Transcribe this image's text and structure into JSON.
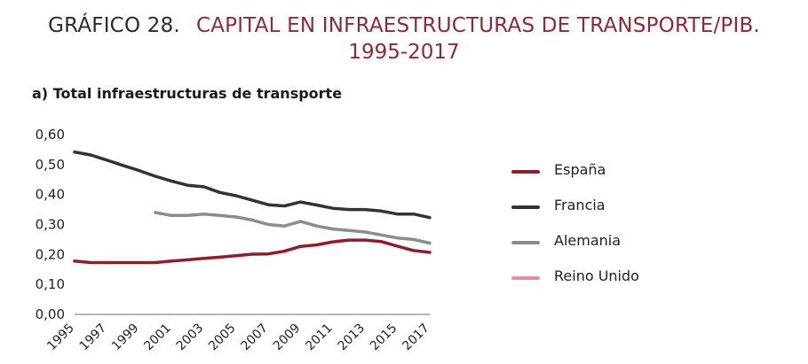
{
  "header": {
    "prefix": "GRÁFICO 28.",
    "title": "CAPITAL EN INFRAESTRUCTURAS DE TRANSPORTE/PIB.",
    "years": "1995-2017"
  },
  "colors": {
    "title_accent": "#8a2b3a",
    "espana": "#8a1f2e",
    "francia": "#333333",
    "alemania": "#8c8c8c",
    "reino_unido": "#e0909a"
  },
  "chart_data": {
    "type": "line",
    "subtitle": "a)  Total infraestructuras de transporte",
    "x": [
      1995,
      1996,
      1997,
      1998,
      1999,
      2000,
      2001,
      2002,
      2003,
      2004,
      2005,
      2006,
      2007,
      2008,
      2009,
      2010,
      2011,
      2012,
      2013,
      2014,
      2015,
      2016,
      2017
    ],
    "xtick_labels": [
      "1995",
      "1997",
      "1999",
      "2001",
      "2003",
      "2005",
      "2007",
      "2009",
      "2011",
      "2013",
      "2015",
      "2017"
    ],
    "ytick_labels": [
      "0,00",
      "0,10",
      "0,20",
      "0,30",
      "0,40",
      "0,50",
      "0,60"
    ],
    "ylim": [
      0,
      0.6
    ],
    "grid": false,
    "legend_position": "right",
    "series": [
      {
        "name": "España",
        "color": "#8a1f2e",
        "values": [
          0.178,
          0.173,
          0.173,
          0.173,
          0.173,
          0.173,
          0.178,
          0.182,
          0.187,
          0.191,
          0.196,
          0.201,
          0.202,
          0.211,
          0.227,
          0.232,
          0.242,
          0.248,
          0.248,
          0.243,
          0.228,
          0.213,
          0.207
        ]
      },
      {
        "name": "Francia",
        "color": "#333333",
        "values": [
          0.542,
          0.532,
          0.515,
          0.497,
          0.48,
          0.461,
          0.445,
          0.431,
          0.426,
          0.407,
          0.396,
          0.381,
          0.366,
          0.362,
          0.375,
          0.365,
          0.354,
          0.35,
          0.35,
          0.345,
          0.335,
          0.335,
          0.323
        ]
      },
      {
        "name": "Alemania",
        "color": "#8c8c8c",
        "values": [
          null,
          null,
          null,
          null,
          null,
          0.34,
          0.33,
          0.33,
          0.335,
          0.33,
          0.325,
          0.315,
          0.3,
          0.295,
          0.31,
          0.295,
          0.285,
          0.28,
          0.275,
          0.265,
          0.255,
          0.25,
          0.238
        ]
      },
      {
        "name": "Reino Unido",
        "color": "#e0909a",
        "values": [
          null,
          null,
          null,
          null,
          null,
          null,
          null,
          null,
          null,
          null,
          null,
          null,
          null,
          null,
          null,
          null,
          null,
          null,
          null,
          null,
          null,
          null,
          null
        ]
      }
    ]
  }
}
